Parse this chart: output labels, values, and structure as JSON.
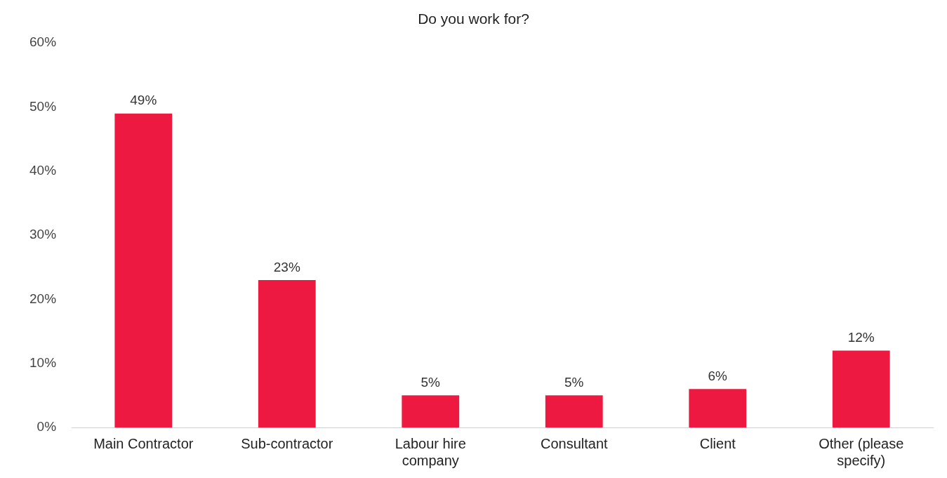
{
  "chart_data": {
    "type": "bar",
    "title": "Do you work for?",
    "categories": [
      "Main Contractor",
      "Sub-contractor",
      "Labour hire company",
      "Consultant",
      "Client",
      "Other (please specify)"
    ],
    "values": [
      49,
      23,
      5,
      5,
      6,
      12
    ],
    "value_labels": [
      "49%",
      "23%",
      "5%",
      "5%",
      "6%",
      "12%"
    ],
    "color": "#ee1940",
    "ylim": [
      0,
      60
    ],
    "yticks": [
      {
        "value": 0,
        "label": "0%"
      },
      {
        "value": 10,
        "label": "10%"
      },
      {
        "value": 20,
        "label": "20%"
      },
      {
        "value": 30,
        "label": "30%"
      },
      {
        "value": 40,
        "label": "40%"
      },
      {
        "value": 50,
        "label": "50%"
      },
      {
        "value": 60,
        "label": "60%"
      }
    ],
    "grid": false,
    "legend": false
  }
}
